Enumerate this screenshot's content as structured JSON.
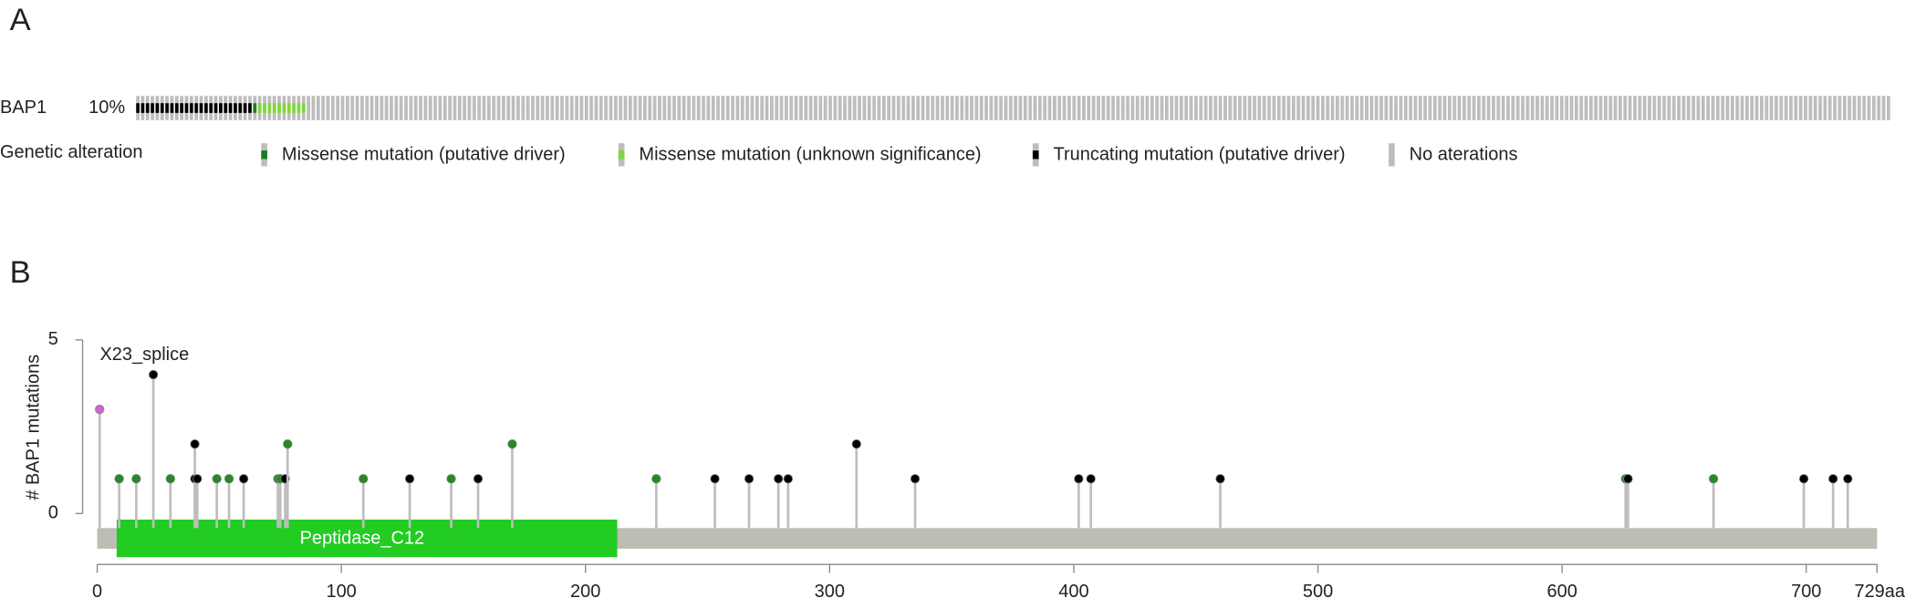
{
  "chart_data": [
    {
      "type": "oncoprint",
      "panel_label": "A",
      "gene": "BAP1",
      "altered": {
        "value": 10,
        "label": "10%"
      },
      "legend_title": "Genetic alteration",
      "series": [
        {
          "name": "Missense mutation (putative driver)",
          "color": "#1f7a1f",
          "count": 1
        },
        {
          "name": "Missense mutation (unknown significance)",
          "color": "#7fd63c",
          "count": 10
        },
        {
          "name": "Truncating mutation (putative driver)",
          "color": "#000000",
          "count": 24
        },
        {
          "name": "No aterations",
          "color": "#bdbdbd",
          "count": 325
        }
      ]
    },
    {
      "type": "lollipop",
      "panel_label": "B",
      "ylabel": "# BAP1 mutations",
      "annotation": "X23_splice",
      "xlim": [
        0,
        729
      ],
      "ylim": [
        0,
        5
      ],
      "xticks": [
        0,
        100,
        200,
        300,
        400,
        500,
        600,
        700,
        {
          "value": 729,
          "label": "729aa"
        }
      ],
      "yticks": [
        0,
        5
      ],
      "domain": {
        "name": "Peptidase_C12",
        "start": 4,
        "end": 213,
        "color": "#22cc22"
      },
      "positions": [
        1,
        9,
        16,
        23,
        30,
        40,
        40,
        41,
        49,
        54,
        60,
        74,
        75,
        77,
        78,
        109,
        128,
        145,
        156,
        170,
        229,
        253,
        267,
        279,
        283,
        311,
        335,
        402,
        407,
        460,
        626,
        627,
        662,
        699,
        711,
        717
      ],
      "counts": [
        3,
        1,
        1,
        4,
        1,
        1,
        2,
        1,
        1,
        1,
        1,
        1,
        1,
        1,
        2,
        1,
        1,
        1,
        1,
        2,
        1,
        1,
        1,
        1,
        1,
        2,
        1,
        1,
        1,
        1,
        1,
        1,
        1,
        1,
        1,
        1
      ],
      "colors": [
        "#cc66cc",
        "#228b22",
        "#228b22",
        "#000000",
        "#228b22",
        "#000000",
        "#000000",
        "#000000",
        "#228b22",
        "#228b22",
        "#000000",
        "#228b22",
        "#228b22",
        "#000000",
        "#228b22",
        "#228b22",
        "#000000",
        "#228b22",
        "#000000",
        "#228b22",
        "#228b22",
        "#000000",
        "#000000",
        "#000000",
        "#000000",
        "#000000",
        "#000000",
        "#000000",
        "#000000",
        "#000000",
        "#228b22",
        "#000000",
        "#228b22",
        "#000000",
        "#000000",
        "#000000"
      ]
    }
  ]
}
